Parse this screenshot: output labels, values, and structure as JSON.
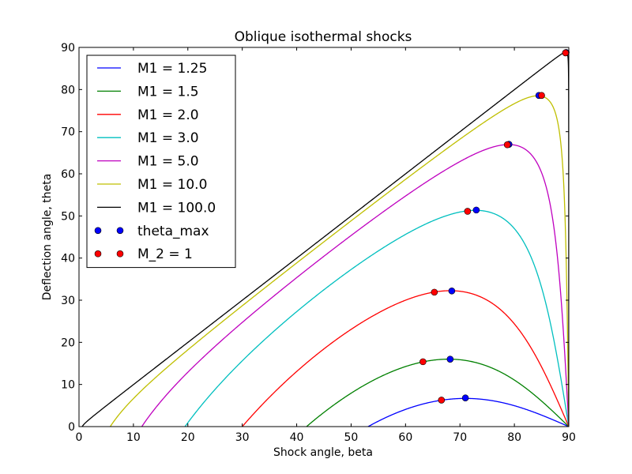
{
  "chart_data": {
    "type": "line",
    "title": "Oblique isothermal shocks",
    "xlabel": "Shock angle, beta",
    "ylabel": "Deflection angle, theta",
    "xlim": [
      0,
      90
    ],
    "ylim": [
      0,
      90
    ],
    "xticks": [
      "0",
      "10",
      "20",
      "30",
      "40",
      "50",
      "60",
      "70",
      "80",
      "90"
    ],
    "yticks": [
      "0",
      "10",
      "20",
      "30",
      "40",
      "50",
      "60",
      "70",
      "80",
      "90"
    ],
    "grid": false,
    "legend_placement": "top-left",
    "series": [
      {
        "name": "M1 = 1.25",
        "color": "#0000ff",
        "mach": 1.25
      },
      {
        "name": "M1 = 1.5",
        "color": "#008000",
        "mach": 1.5
      },
      {
        "name": "M1 = 2.0",
        "color": "#ff0000",
        "mach": 2.0
      },
      {
        "name": "M1 = 3.0",
        "color": "#00bfbf",
        "mach": 3.0
      },
      {
        "name": "M1 = 5.0",
        "color": "#bf00bf",
        "mach": 5.0
      },
      {
        "name": "M1 = 10.0",
        "color": "#bfbf00",
        "mach": 10.0
      },
      {
        "name": "M1 = 100.0",
        "color": "#000000",
        "mach": 100.0
      }
    ],
    "markers": [
      {
        "name": "theta_max",
        "color": "#0000ff",
        "points": [
          [
            71.0,
            6.8
          ],
          [
            68.2,
            16.0
          ],
          [
            68.5,
            32.2
          ],
          [
            73.0,
            51.4
          ],
          [
            79.0,
            67.0
          ],
          [
            84.5,
            78.6
          ],
          [
            89.5,
            88.8
          ]
        ]
      },
      {
        "name": "M_2 = 1",
        "color": "#ff0000",
        "points": [
          [
            66.6,
            6.3
          ],
          [
            63.2,
            15.4
          ],
          [
            65.3,
            31.9
          ],
          [
            71.4,
            51.1
          ],
          [
            78.7,
            66.9
          ],
          [
            85.0,
            78.6
          ],
          [
            89.4,
            88.7
          ]
        ]
      }
    ]
  }
}
